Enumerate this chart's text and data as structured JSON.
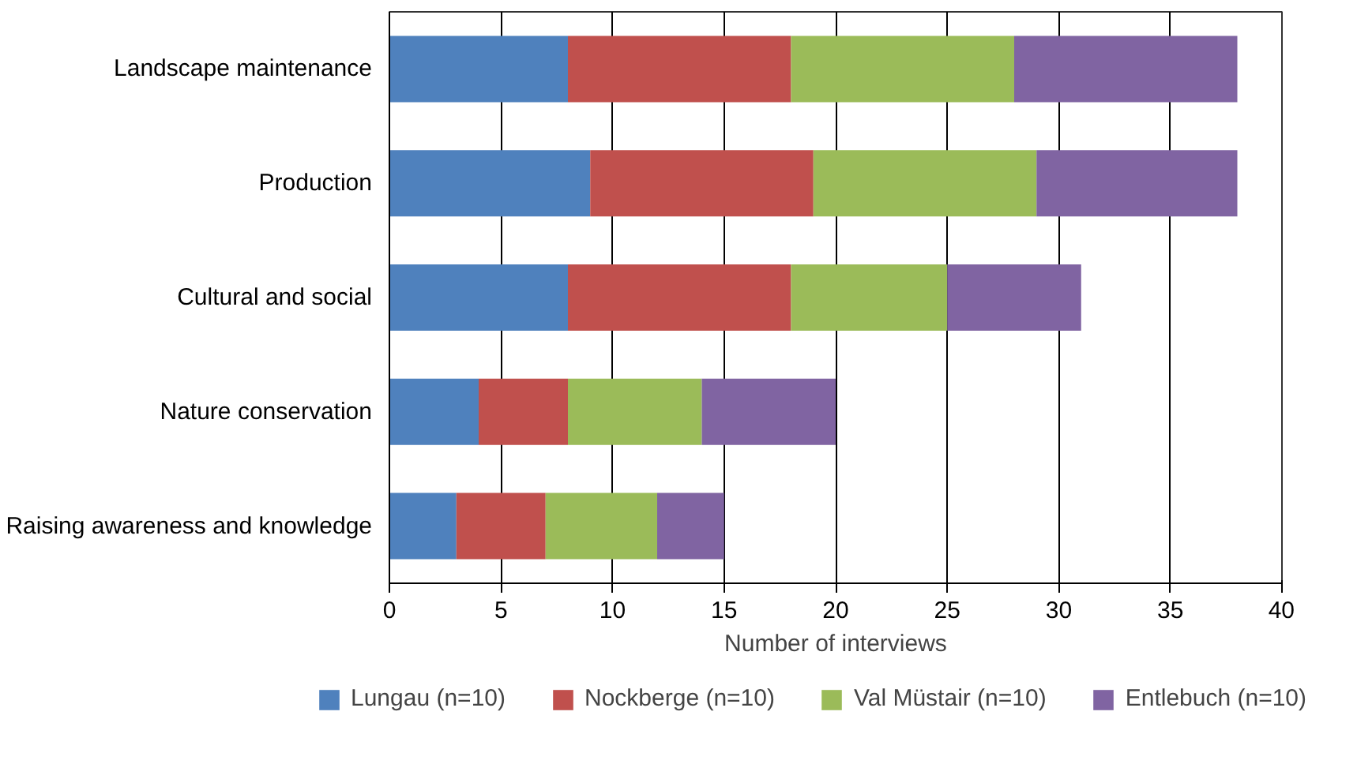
{
  "chart_data": {
    "type": "bar",
    "orientation": "horizontal",
    "stacked": true,
    "categories": [
      "Landscape maintenance",
      "Production",
      "Cultural and social",
      "Nature conservation",
      "Raising awareness and knowledge"
    ],
    "series": [
      {
        "name": "Lungau (n=10)",
        "color": "#4f81bd",
        "values": [
          8,
          9,
          8,
          4,
          3
        ]
      },
      {
        "name": "Nockberge (n=10)",
        "color": "#c0504d",
        "values": [
          10,
          10,
          10,
          4,
          4
        ]
      },
      {
        "name": "Val Müstair (n=10)",
        "color": "#9bbb59",
        "values": [
          10,
          10,
          7,
          6,
          5
        ]
      },
      {
        "name": "Entlebuch (n=10)",
        "color": "#8064a2",
        "values": [
          10,
          9,
          6,
          6,
          3
        ]
      }
    ],
    "xlabel": "Number of interviews",
    "xlim": [
      0,
      40
    ],
    "xticks": [
      0,
      5,
      10,
      15,
      20,
      25,
      30,
      35,
      40
    ],
    "grid": "x",
    "legend": "bottom"
  }
}
